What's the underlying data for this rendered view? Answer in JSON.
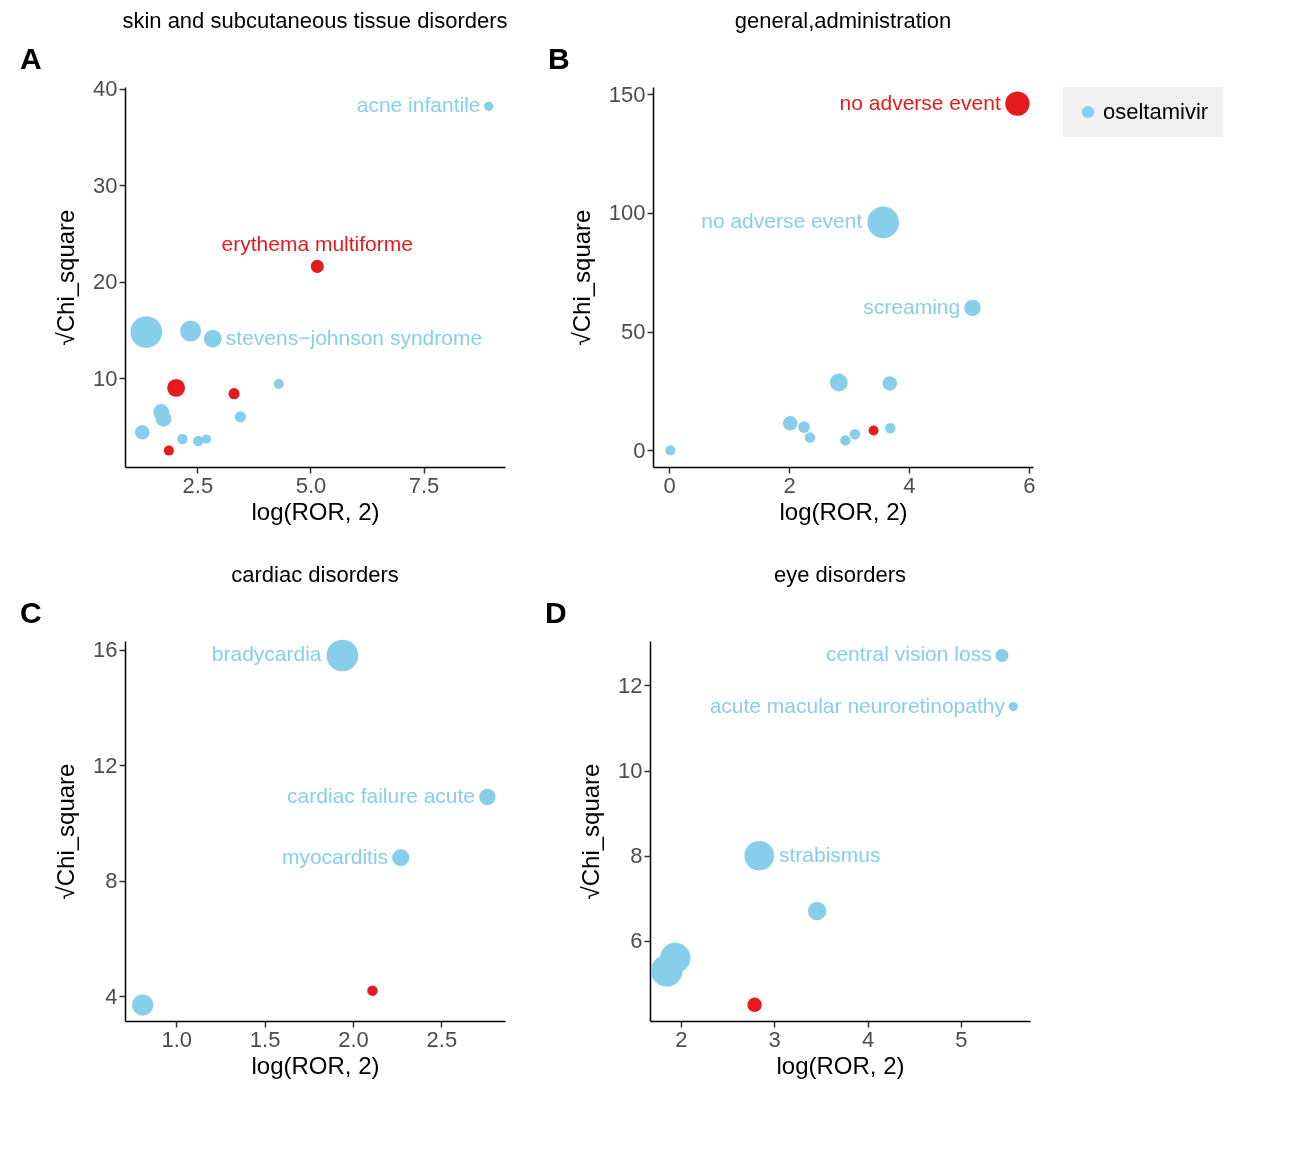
{
  "chart_data": [
    {
      "type": "bubble",
      "title": "skin and subcutaneous tissue disorders",
      "xlabel": "log(ROR, 2)",
      "ylabel": "√Chi_square",
      "xlim": [
        0.9,
        9.3
      ],
      "xticks": [
        2.5,
        {
          "value": 5,
          "label": "5.0"
        },
        7.5
      ],
      "ylim": [
        0.8,
        40.2
      ],
      "yticks": [
        10,
        20,
        30,
        40
      ],
      "series": [
        {
          "color": "#87ceeb",
          "x": [
            8.94,
            1.37,
            2.35,
            2.84,
            4.3,
            3.45,
            1.7,
            1.75,
            1.28,
            2.17,
            2.52,
            2.7
          ],
          "values": [
            38.2,
            14.8,
            14.9,
            14.1,
            9.4,
            6.0,
            6.5,
            5.8,
            4.4,
            3.7,
            3.5,
            3.7
          ],
          "sizes": [
            0.085,
            1,
            0.44,
            0.32,
            0.1,
            0.125,
            0.25,
            0.25,
            0.21,
            0.11,
            0.11,
            0.085
          ]
        },
        {
          "color": "#e41a1c",
          "x": [
            5.15,
            2.03,
            3.31,
            1.87
          ],
          "values": [
            21.6,
            9.0,
            8.4,
            2.5
          ],
          "sizes": [
            0.17,
            0.32,
            0.125,
            0.1
          ]
        }
      ],
      "annotations": [
        "A",
        {
          "text": "acne infantile",
          "x": 8.94,
          "y": 38.2
        },
        {
          "text": "erythema multiforme",
          "x": 5.15,
          "y": 21.6
        },
        {
          "text": "stevens−johnson syndrome",
          "x": 2.84,
          "y": 14.1
        }
      ]
    },
    {
      "type": "bubble",
      "title": "general,administration",
      "xlabel": "log(ROR, 2)",
      "ylabel": "√Chi_square",
      "xlim": [
        -0.27,
        6.07
      ],
      "xticks": [
        0,
        2,
        4,
        6
      ],
      "ylim": [
        -7,
        153
      ],
      "yticks": [
        0,
        50,
        100,
        150
      ],
      "legend": "right",
      "series": [
        {
          "name": "oseltamivir",
          "color": "#87ceeb",
          "x": [
            3.57,
            5.06,
            2.83,
            3.68,
            2.02,
            2.25,
            2.35,
            2.94,
            3.1,
            3.69,
            0.02
          ],
          "values": [
            96,
            60,
            28.6,
            28.2,
            11.4,
            9.8,
            5.4,
            4.2,
            6.8,
            9.3,
            0
          ],
          "sizes": [
            1,
            0.27,
            0.32,
            0.21,
            0.21,
            0.14,
            0.11,
            0.11,
            0.11,
            0.11,
            0.1
          ]
        },
        {
          "color": "#e41a1c",
          "x": [
            5.81,
            3.41
          ],
          "values": [
            146,
            8.4
          ],
          "sizes": [
            0.59,
            0.1
          ]
        }
      ],
      "annotations": [
        "B",
        {
          "text": "no adverse event",
          "x": 5.81,
          "y": 146
        },
        {
          "text": "no adverse event",
          "x": 3.57,
          "y": 96
        },
        {
          "text": "screaming",
          "x": 5.06,
          "y": 60
        }
      ]
    },
    {
      "type": "bubble",
      "title": "cardiac disorders",
      "xlabel": "log(ROR, 2)",
      "ylabel": "√Chi_square",
      "xlim": [
        0.71,
        2.86
      ],
      "xticks": [
        {
          "value": 1,
          "label": "1.0"
        },
        1.5,
        {
          "value": 2,
          "label": "2.0"
        },
        2.5
      ],
      "ylim": [
        3.15,
        16.3
      ],
      "yticks": [
        4,
        8,
        12,
        16
      ],
      "series": [
        {
          "color": "#87ceeb",
          "x": [
            1.94,
            2.76,
            2.27,
            0.81
          ],
          "values": [
            15.8,
            10.9,
            8.8,
            3.7
          ],
          "sizes": [
            1,
            0.27,
            0.29,
            0.45
          ]
        },
        {
          "color": "#e41a1c",
          "x": [
            2.11
          ],
          "values": [
            4.2
          ],
          "sizes": [
            0.11
          ]
        }
      ],
      "annotations": [
        "C",
        {
          "text": "bradycardia",
          "x": 1.94,
          "y": 15.8
        },
        {
          "text": "cardiac failure acute",
          "x": 2.76,
          "y": 10.9
        },
        {
          "text": "myocarditis",
          "x": 2.27,
          "y": 8.8
        }
      ]
    },
    {
      "type": "bubble",
      "title": "eye disorders",
      "xlabel": "log(ROR, 2)",
      "ylabel": "√Chi_square",
      "xlim": [
        1.67,
        5.74
      ],
      "xticks": [
        2,
        3,
        4,
        5
      ],
      "ylim": [
        4.12,
        13.04
      ],
      "yticks": [
        6,
        8,
        10,
        12
      ],
      "series": [
        {
          "color": "#87ceeb",
          "x": [
            5.44,
            5.56,
            2.84,
            3.46,
            1.94,
            1.85
          ],
          "values": [
            12.7,
            11.5,
            8.0,
            6.7,
            5.6,
            5.3
          ],
          "sizes": [
            0.17,
            0.085,
            0.88,
            0.34,
            0.92,
            1
          ]
        },
        {
          "color": "#e41a1c",
          "x": [
            2.79
          ],
          "values": [
            4.5
          ],
          "sizes": [
            0.21
          ]
        }
      ],
      "annotations": [
        "D",
        {
          "text": "central vision loss",
          "x": 5.44,
          "y": 12.7
        },
        {
          "text": "acute macular neuroretinopathy",
          "x": 5.56,
          "y": 11.5
        },
        {
          "text": "strabismus",
          "x": 2.84,
          "y": 8.0
        }
      ]
    }
  ]
}
